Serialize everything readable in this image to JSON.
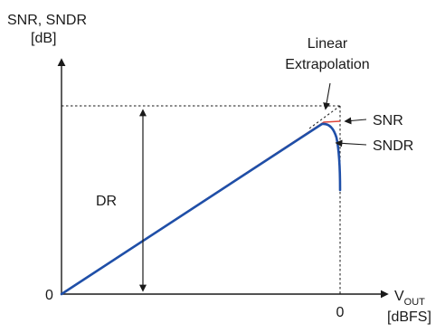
{
  "y_axis_label": {
    "line1": "SNR, SNDR",
    "line2": "[dB]"
  },
  "x_axis_label": {
    "main": "V",
    "sub": "OUT",
    "unit": "[dBFS]"
  },
  "origin_label": "0",
  "x_zero_label": "0",
  "annotations": {
    "linear_extrapolation_line1": "Linear",
    "linear_extrapolation_line2": "Extrapolation",
    "snr": "SNR",
    "sndr": "SNDR",
    "dr": "DR"
  },
  "colors": {
    "axis": "#1a1a1a",
    "snr_curve": "#e0463a",
    "sndr_curve": "#1f4fa8",
    "extrapolation": "#1a1a1a"
  }
}
